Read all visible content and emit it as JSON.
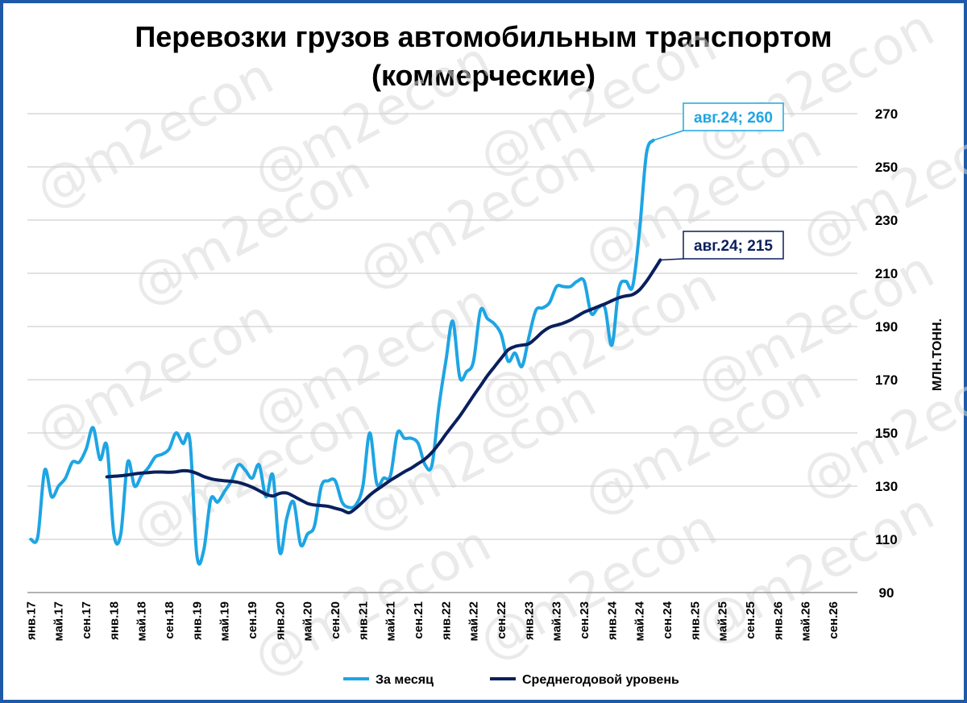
{
  "watermark": "@m2econ",
  "chart_data": {
    "type": "line",
    "title": "Перевозки грузов автомобильным транспортом",
    "subtitle": "(коммерческие)",
    "ylabel": "МЛН.ТОНН.",
    "ylim": [
      90,
      270
    ],
    "yticks": [
      90,
      110,
      130,
      150,
      170,
      190,
      210,
      230,
      250,
      270
    ],
    "y_axis_position": "right",
    "grid": true,
    "legend_position": "bottom",
    "x_labels": [
      "янв.17",
      "май.17",
      "сен.17",
      "янв.18",
      "май.18",
      "сен.18",
      "янв.19",
      "май.19",
      "сен.19",
      "янв.20",
      "май.20",
      "сен.20",
      "янв.21",
      "май.21",
      "сен.21",
      "янв.22",
      "май.22",
      "сен.22",
      "янв.23",
      "май.23",
      "сен.23",
      "янв.24",
      "май.24",
      "сен.24",
      "янв.25",
      "май.25",
      "сен.25",
      "янв.26",
      "май.26",
      "сен.26"
    ],
    "series": [
      {
        "name": "За месяц",
        "color": "#1ea5e3",
        "start": "янв.17",
        "values": [
          110,
          111,
          136,
          126,
          130,
          133,
          139,
          139,
          144,
          152,
          140,
          145,
          112,
          112,
          139,
          130,
          134,
          137,
          141,
          142,
          144,
          150,
          146,
          147,
          104,
          106,
          125,
          124,
          128,
          132,
          138,
          136,
          133,
          138,
          126,
          134,
          105,
          118,
          124,
          108,
          112,
          115,
          130,
          132,
          132,
          124,
          122,
          123,
          130,
          150,
          131,
          133,
          134,
          150,
          148,
          148,
          146,
          138,
          138,
          160,
          177,
          192,
          171,
          173,
          177,
          196,
          193,
          191,
          187,
          177,
          180,
          175,
          186,
          196,
          197,
          199,
          205,
          205,
          205,
          207,
          207,
          195,
          197,
          197,
          183,
          204,
          207,
          205,
          226,
          255,
          260
        ]
      },
      {
        "name": "Среднегодовой уровень",
        "color": "#0a1f5c",
        "start": "дек.17",
        "values": [
          133.5,
          133.7,
          133.9,
          134.2,
          134.6,
          134.9,
          135.1,
          135.3,
          135.3,
          135.2,
          135.4,
          135.8,
          135.6,
          134.8,
          133.6,
          132.8,
          132.3,
          132.0,
          131.8,
          131.4,
          130.6,
          129.6,
          128.3,
          126.9,
          126.3,
          127.3,
          127.4,
          126.2,
          124.8,
          123.5,
          122.9,
          122.7,
          122.4,
          121.7,
          121.0,
          120.0,
          121.7,
          124.1,
          126.6,
          128.6,
          130.4,
          132.2,
          133.8,
          135.4,
          136.8,
          138.5,
          140.2,
          142.7,
          145.9,
          149.5,
          152.9,
          156.3,
          160.1,
          164.0,
          167.7,
          171.5,
          174.8,
          178.1,
          181.2,
          182.5,
          183.0,
          183.5,
          185.6,
          188.0,
          189.7,
          190.5,
          191.3,
          192.4,
          193.9,
          195.4,
          196.4,
          197.5,
          198.5,
          199.7,
          200.8,
          201.5,
          202.0,
          203.8,
          207.0,
          210.9,
          215
        ]
      }
    ],
    "annotations": [
      {
        "series": "За месяц",
        "point": "авг.24",
        "value": 260,
        "label": "авг.24; 260"
      },
      {
        "series": "Среднегодовой уровень",
        "point": "авг.24",
        "value": 215,
        "label": "авг.24; 215"
      }
    ]
  }
}
